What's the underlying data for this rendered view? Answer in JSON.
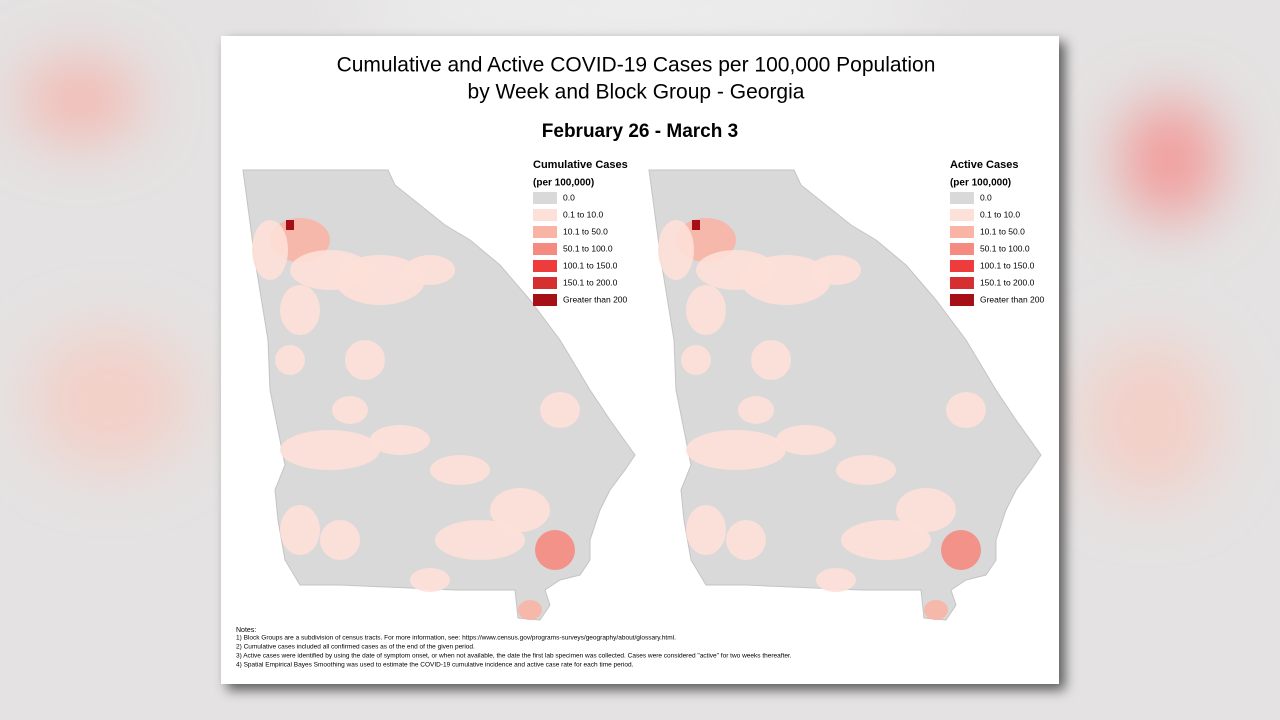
{
  "header": {
    "title_line1": "Cumulative and Active COVID-19 Cases per 100,000 Population",
    "title_line2": "by Week and Block Group - Georgia",
    "period": "February 26 - March 3"
  },
  "maps": [
    {
      "legend_title": "Cumulative Cases",
      "legend_subtitle": "(per 100,000)",
      "classes": [
        {
          "label": "0.0",
          "color": "#d9d9d9"
        },
        {
          "label": "0.1 to 10.0",
          "color": "#fde0d7"
        },
        {
          "label": "10.1 to 50.0",
          "color": "#f9b4a6"
        },
        {
          "label": "50.1 to 100.0",
          "color": "#f58a80"
        },
        {
          "label": "100.1 to 150.0",
          "color": "#ee3b3b"
        },
        {
          "label": "150.1 to 200.0",
          "color": "#d62f2f"
        },
        {
          "label": "Greater than 200",
          "color": "#a50f15"
        }
      ]
    },
    {
      "legend_title": "Active Cases",
      "legend_subtitle": "(per 100,000)",
      "classes": [
        {
          "label": "0.0",
          "color": "#d9d9d9"
        },
        {
          "label": "0.1 to 10.0",
          "color": "#fde0d7"
        },
        {
          "label": "10.1 to 50.0",
          "color": "#f9b4a6"
        },
        {
          "label": "50.1 to 100.0",
          "color": "#f58a80"
        },
        {
          "label": "100.1 to 150.0",
          "color": "#ee3b3b"
        },
        {
          "label": "150.1 to 200.0",
          "color": "#d62f2f"
        },
        {
          "label": "Greater than 200",
          "color": "#a50f15"
        }
      ]
    }
  ],
  "notes": {
    "heading": "Notes:",
    "items": [
      "1) Block Groups are a subdivision of census tracts. For more information, see: https://www.census.gov/programs-surveys/geography/about/glossary.html.",
      "2) Cumulative cases included all confirmed cases as of the end of the given period.",
      "3) Active cases were identified by using the date of symptom onset, or when not available, the date the first lab specimen was collected. Cases were considered \"active\" for two weeks thereafter.",
      "4) Spatial Empirical Bayes Smoothing was used to estimate the COVID-19 cumulative incidence and active case rate for each time period."
    ]
  }
}
